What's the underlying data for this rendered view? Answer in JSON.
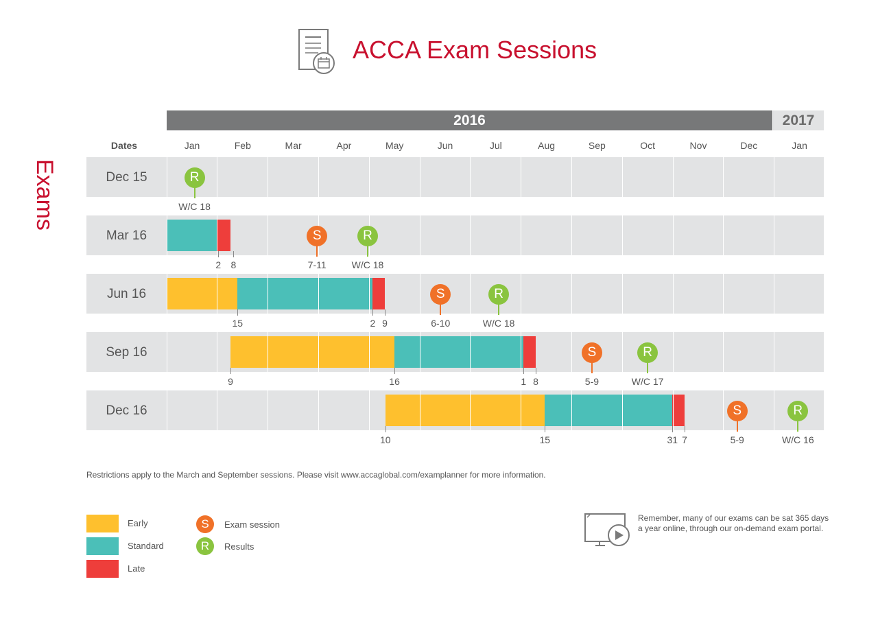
{
  "header": {
    "title": "ACCA Exam Sessions",
    "icon": "document-calendar-icon"
  },
  "side_label": "Exams",
  "timeline": {
    "years": [
      "2016",
      "2017"
    ],
    "dates_header": "Dates",
    "months": [
      "Jan",
      "Feb",
      "Mar",
      "Apr",
      "May",
      "Jun",
      "Jul",
      "Aug",
      "Sep",
      "Oct",
      "Nov",
      "Dec",
      "Jan"
    ]
  },
  "colors": {
    "early": "#fec02e",
    "standard": "#4bbfb8",
    "late": "#ee3e3b",
    "exam_session": "#f07128",
    "results": "#8ac43f",
    "title": "#c8102e"
  },
  "sessions": [
    {
      "label": "Dec 15",
      "phases": [],
      "date_labels": [],
      "markers": [
        {
          "type": "R",
          "letter": "R",
          "month": 0.55,
          "text": "W/C 18"
        }
      ]
    },
    {
      "label": "Mar 16",
      "phases": [
        {
          "kind": "standard",
          "start": 0.0,
          "end": 1.0
        },
        {
          "kind": "late",
          "start": 1.0,
          "end": 1.26
        }
      ],
      "date_labels": [
        {
          "text": "2",
          "month": 1.02
        },
        {
          "text": "8",
          "month": 1.32
        }
      ],
      "markers": [
        {
          "type": "S",
          "letter": "S",
          "month": 2.97,
          "text": "7-11"
        },
        {
          "type": "R",
          "letter": "R",
          "month": 3.97,
          "text": "W/C 18"
        }
      ]
    },
    {
      "label": "Jun 16",
      "phases": [
        {
          "kind": "early",
          "start": 0.0,
          "end": 1.4
        },
        {
          "kind": "standard",
          "start": 1.4,
          "end": 4.07
        },
        {
          "kind": "late",
          "start": 4.07,
          "end": 4.31
        }
      ],
      "date_labels": [
        {
          "text": "15",
          "month": 1.4
        },
        {
          "text": "2",
          "month": 4.07
        },
        {
          "text": "9",
          "month": 4.31
        }
      ],
      "markers": [
        {
          "type": "S",
          "letter": "S",
          "month": 5.41,
          "text": "6-10"
        },
        {
          "type": "R",
          "letter": "R",
          "month": 6.56,
          "text": "W/C 18"
        }
      ]
    },
    {
      "label": "Sep 16",
      "phases": [
        {
          "kind": "early",
          "start": 1.26,
          "end": 4.5
        },
        {
          "kind": "standard",
          "start": 4.5,
          "end": 7.05
        },
        {
          "kind": "late",
          "start": 7.05,
          "end": 7.29
        }
      ],
      "date_labels": [
        {
          "text": "9",
          "month": 1.26
        },
        {
          "text": "16",
          "month": 4.5
        },
        {
          "text": "1",
          "month": 7.05
        },
        {
          "text": "8",
          "month": 7.29
        }
      ],
      "markers": [
        {
          "type": "S",
          "letter": "S",
          "month": 8.4,
          "text": "5-9"
        },
        {
          "type": "R",
          "letter": "R",
          "month": 9.5,
          "text": "W/C 17"
        }
      ]
    },
    {
      "label": "Dec 16",
      "phases": [
        {
          "kind": "early",
          "start": 4.32,
          "end": 7.47
        },
        {
          "kind": "standard",
          "start": 7.47,
          "end": 9.99
        },
        {
          "kind": "late",
          "start": 9.99,
          "end": 10.23
        }
      ],
      "date_labels": [
        {
          "text": "10",
          "month": 4.32
        },
        {
          "text": "15",
          "month": 7.47
        },
        {
          "text": "31",
          "month": 9.99
        },
        {
          "text": "7",
          "month": 10.23
        }
      ],
      "markers": [
        {
          "type": "S",
          "letter": "S",
          "month": 11.27,
          "text": "5-9"
        },
        {
          "type": "R",
          "letter": "R",
          "month": 12.47,
          "text": "W/C 16"
        }
      ]
    }
  ],
  "footnote": "Restrictions apply to the March and September sessions. Please visit www.accaglobal.com/examplanner for more information.",
  "legend": {
    "phases": [
      {
        "kind": "early",
        "label": "Early"
      },
      {
        "kind": "standard",
        "label": "Standard"
      },
      {
        "kind": "late",
        "label": "Late"
      }
    ],
    "markers": [
      {
        "type": "S",
        "letter": "S",
        "label": "Exam session"
      },
      {
        "type": "R",
        "letter": "R",
        "label": "Results"
      }
    ]
  },
  "note": {
    "icon": "monitor-play-icon",
    "text": "Remember, many of our exams can be sat 365 days a year online, through our on-demand exam portal."
  }
}
